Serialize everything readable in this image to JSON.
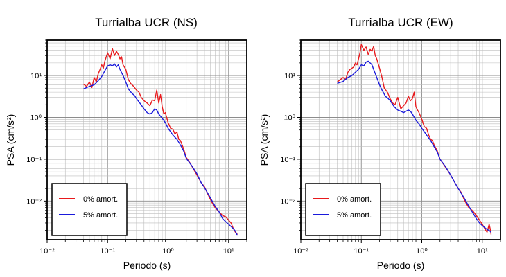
{
  "chart_data": [
    {
      "type": "line",
      "title": "Turrialba UCR (NS)",
      "xlabel": "Periodo (s)",
      "ylabel": "PSA (cm/s²)",
      "x_scale": "log",
      "y_scale": "log",
      "xlim": [
        0.01,
        20
      ],
      "ylim": [
        0.0012,
        70
      ],
      "grid": true,
      "legend_position": "bottom-left",
      "x_ticks": [
        "10⁻²",
        "10⁻¹",
        "10⁰",
        "10¹"
      ],
      "y_ticks": [
        "10⁻²",
        "10⁻¹",
        "10⁰",
        "10¹"
      ],
      "series": [
        {
          "name": "0% amort.",
          "color": "#e8191c",
          "points": [
            [
              0.04,
              6.2
            ],
            [
              0.045,
              5.5
            ],
            [
              0.05,
              7
            ],
            [
              0.055,
              5.2
            ],
            [
              0.06,
              9
            ],
            [
              0.065,
              7
            ],
            [
              0.07,
              11
            ],
            [
              0.075,
              14
            ],
            [
              0.08,
              18
            ],
            [
              0.085,
              15
            ],
            [
              0.09,
              22
            ],
            [
              0.095,
              28
            ],
            [
              0.1,
              35
            ],
            [
              0.11,
              25
            ],
            [
              0.12,
              44
            ],
            [
              0.13,
              30
            ],
            [
              0.14,
              38
            ],
            [
              0.15,
              32
            ],
            [
              0.16,
              25
            ],
            [
              0.17,
              28
            ],
            [
              0.18,
              18
            ],
            [
              0.2,
              14
            ],
            [
              0.22,
              8
            ],
            [
              0.24,
              6.5
            ],
            [
              0.27,
              5.5
            ],
            [
              0.3,
              4.5
            ],
            [
              0.33,
              4.0
            ],
            [
              0.36,
              3.0
            ],
            [
              0.4,
              2.5
            ],
            [
              0.45,
              2.2
            ],
            [
              0.5,
              1.9
            ],
            [
              0.55,
              2.6
            ],
            [
              0.6,
              2.5
            ],
            [
              0.65,
              4.5
            ],
            [
              0.7,
              2.2
            ],
            [
              0.75,
              3.5
            ],
            [
              0.8,
              1.8
            ],
            [
              0.85,
              1.2
            ],
            [
              0.9,
              1.3
            ],
            [
              1.0,
              0.75
            ],
            [
              1.1,
              0.55
            ],
            [
              1.2,
              0.52
            ],
            [
              1.3,
              0.4
            ],
            [
              1.4,
              0.45
            ],
            [
              1.5,
              0.3
            ],
            [
              1.6,
              0.28
            ],
            [
              1.8,
              0.18
            ],
            [
              2.0,
              0.11
            ],
            [
              2.3,
              0.082
            ],
            [
              2.6,
              0.06
            ],
            [
              3.0,
              0.042
            ],
            [
              3.5,
              0.028
            ],
            [
              4.0,
              0.022
            ],
            [
              4.5,
              0.015
            ],
            [
              5.0,
              0.011
            ],
            [
              5.5,
              0.0085
            ],
            [
              6.0,
              0.007
            ],
            [
              7.0,
              0.0055
            ],
            [
              8.0,
              0.0045
            ],
            [
              9.0,
              0.0042
            ],
            [
              10.0,
              0.0035
            ],
            [
              11.0,
              0.003
            ],
            [
              12.0,
              0.0022
            ],
            [
              13.0,
              0.0018
            ],
            [
              14.0,
              0.0016
            ]
          ]
        },
        {
          "name": "5% amort.",
          "color": "#1a1adb",
          "points": [
            [
              0.04,
              4.8
            ],
            [
              0.05,
              5.5
            ],
            [
              0.06,
              6.0
            ],
            [
              0.07,
              7.5
            ],
            [
              0.08,
              9.5
            ],
            [
              0.09,
              13
            ],
            [
              0.1,
              17
            ],
            [
              0.11,
              18
            ],
            [
              0.12,
              17
            ],
            [
              0.13,
              19
            ],
            [
              0.14,
              16
            ],
            [
              0.15,
              18
            ],
            [
              0.16,
              14
            ],
            [
              0.18,
              10
            ],
            [
              0.2,
              7
            ],
            [
              0.22,
              4.8
            ],
            [
              0.25,
              3.8
            ],
            [
              0.28,
              3.3
            ],
            [
              0.3,
              2.8
            ],
            [
              0.35,
              2.1
            ],
            [
              0.4,
              1.6
            ],
            [
              0.45,
              1.3
            ],
            [
              0.5,
              1.2
            ],
            [
              0.55,
              1.3
            ],
            [
              0.6,
              1.6
            ],
            [
              0.65,
              1.5
            ],
            [
              0.7,
              1.2
            ],
            [
              0.8,
              0.95
            ],
            [
              0.9,
              0.75
            ],
            [
              1.0,
              0.55
            ],
            [
              1.2,
              0.38
            ],
            [
              1.4,
              0.3
            ],
            [
              1.6,
              0.22
            ],
            [
              1.8,
              0.16
            ],
            [
              2.0,
              0.105
            ],
            [
              2.5,
              0.068
            ],
            [
              3.0,
              0.045
            ],
            [
              3.5,
              0.028
            ],
            [
              4.0,
              0.021
            ],
            [
              5.0,
              0.012
            ],
            [
              6.0,
              0.0075
            ],
            [
              7.0,
              0.0055
            ],
            [
              8.0,
              0.0038
            ],
            [
              9.0,
              0.0032
            ],
            [
              10.0,
              0.0028
            ],
            [
              12.0,
              0.0022
            ],
            [
              13.0,
              0.0019
            ],
            [
              14.0,
              0.0015
            ]
          ]
        }
      ]
    },
    {
      "type": "line",
      "title": "Turrialba UCR (EW)",
      "xlabel": "Periodo (s)",
      "ylabel": "PSA (cm/s²)",
      "x_scale": "log",
      "y_scale": "log",
      "xlim": [
        0.01,
        20
      ],
      "ylim": [
        0.0012,
        70
      ],
      "grid": true,
      "legend_position": "bottom-left",
      "x_ticks": [
        "10⁻²",
        "10⁻¹",
        "10⁰",
        "10¹"
      ],
      "y_ticks": [
        "10⁻²",
        "10⁻¹",
        "10⁰",
        "10¹"
      ],
      "series": [
        {
          "name": "0% amort.",
          "color": "#e8191c",
          "points": [
            [
              0.04,
              7
            ],
            [
              0.045,
              8
            ],
            [
              0.05,
              9
            ],
            [
              0.055,
              8
            ],
            [
              0.06,
              12
            ],
            [
              0.065,
              14
            ],
            [
              0.07,
              15
            ],
            [
              0.075,
              16
            ],
            [
              0.08,
              20
            ],
            [
              0.085,
              18
            ],
            [
              0.09,
              25
            ],
            [
              0.095,
              35
            ],
            [
              0.1,
              55
            ],
            [
              0.11,
              40
            ],
            [
              0.12,
              48
            ],
            [
              0.13,
              32
            ],
            [
              0.14,
              42
            ],
            [
              0.15,
              38
            ],
            [
              0.16,
              50
            ],
            [
              0.17,
              30
            ],
            [
              0.18,
              25
            ],
            [
              0.2,
              15
            ],
            [
              0.22,
              9
            ],
            [
              0.24,
              5
            ],
            [
              0.27,
              4
            ],
            [
              0.3,
              2.8
            ],
            [
              0.33,
              2.2
            ],
            [
              0.36,
              2.0
            ],
            [
              0.4,
              3.0
            ],
            [
              0.45,
              1.6
            ],
            [
              0.5,
              1.9
            ],
            [
              0.55,
              2.2
            ],
            [
              0.6,
              3.2
            ],
            [
              0.65,
              2.5
            ],
            [
              0.7,
              2.8
            ],
            [
              0.75,
              4.0
            ],
            [
              0.8,
              1.8
            ],
            [
              0.85,
              1.5
            ],
            [
              0.9,
              1.3
            ],
            [
              1.0,
              0.9
            ],
            [
              1.1,
              0.6
            ],
            [
              1.2,
              0.55
            ],
            [
              1.3,
              0.38
            ],
            [
              1.4,
              0.3
            ],
            [
              1.5,
              0.28
            ],
            [
              1.6,
              0.22
            ],
            [
              1.8,
              0.16
            ],
            [
              2.0,
              0.1
            ],
            [
              2.3,
              0.075
            ],
            [
              2.6,
              0.058
            ],
            [
              3.0,
              0.042
            ],
            [
              3.5,
              0.028
            ],
            [
              4.0,
              0.02
            ],
            [
              4.5,
              0.016
            ],
            [
              5.0,
              0.011
            ],
            [
              5.5,
              0.0085
            ],
            [
              6.0,
              0.007
            ],
            [
              7.0,
              0.0058
            ],
            [
              8.0,
              0.0045
            ],
            [
              9.0,
              0.0035
            ],
            [
              10.0,
              0.0028
            ],
            [
              11.0,
              0.0022
            ],
            [
              12.0,
              0.0018
            ],
            [
              13.0,
              0.0028
            ],
            [
              13.5,
              0.0022
            ],
            [
              14.0,
              0.0016
            ]
          ]
        },
        {
          "name": "5% amort.",
          "color": "#1a1adb",
          "points": [
            [
              0.04,
              6.5
            ],
            [
              0.05,
              7.2
            ],
            [
              0.06,
              9.0
            ],
            [
              0.07,
              10
            ],
            [
              0.08,
              12
            ],
            [
              0.09,
              14
            ],
            [
              0.1,
              18
            ],
            [
              0.11,
              17
            ],
            [
              0.12,
              21
            ],
            [
              0.13,
              22
            ],
            [
              0.14,
              20
            ],
            [
              0.15,
              18
            ],
            [
              0.16,
              14
            ],
            [
              0.18,
              9
            ],
            [
              0.2,
              6
            ],
            [
              0.22,
              4.5
            ],
            [
              0.25,
              3.2
            ],
            [
              0.28,
              2.8
            ],
            [
              0.3,
              2.5
            ],
            [
              0.35,
              1.8
            ],
            [
              0.4,
              1.5
            ],
            [
              0.45,
              1.4
            ],
            [
              0.5,
              1.3
            ],
            [
              0.55,
              1.4
            ],
            [
              0.6,
              1.5
            ],
            [
              0.65,
              1.4
            ],
            [
              0.7,
              1.2
            ],
            [
              0.8,
              0.85
            ],
            [
              0.9,
              0.7
            ],
            [
              1.0,
              0.55
            ],
            [
              1.2,
              0.38
            ],
            [
              1.4,
              0.28
            ],
            [
              1.6,
              0.2
            ],
            [
              1.8,
              0.15
            ],
            [
              2.0,
              0.1
            ],
            [
              2.5,
              0.065
            ],
            [
              3.0,
              0.042
            ],
            [
              3.5,
              0.028
            ],
            [
              4.0,
              0.02
            ],
            [
              5.0,
              0.012
            ],
            [
              6.0,
              0.0075
            ],
            [
              7.0,
              0.0052
            ],
            [
              8.0,
              0.0038
            ],
            [
              9.0,
              0.003
            ],
            [
              10.0,
              0.0026
            ],
            [
              12.0,
              0.0021
            ],
            [
              13.0,
              0.002
            ],
            [
              14.0,
              0.0018
            ]
          ]
        }
      ]
    }
  ]
}
